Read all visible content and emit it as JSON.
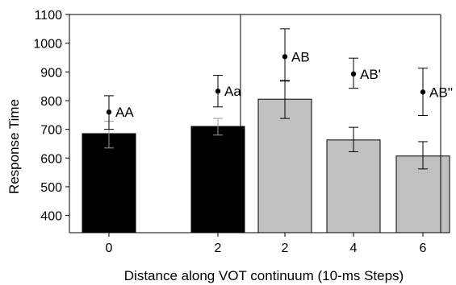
{
  "chart_data": {
    "type": "bar",
    "xlabel": "Distance along VOT continuum (10-ms Steps)",
    "ylabel": "Response Time",
    "ylim": [
      340,
      1100
    ],
    "yticks": [
      400,
      500,
      600,
      700,
      800,
      900,
      1000,
      1100
    ],
    "grid": false,
    "panel_divider_after_index": 1,
    "categories": [
      "0",
      "2",
      "2",
      "4",
      "6"
    ],
    "bars": {
      "values": [
        685,
        710,
        805,
        663,
        607
      ],
      "err_low": [
        635,
        680,
        738,
        622,
        562
      ],
      "err_high": [
        728,
        738,
        870,
        707,
        657
      ],
      "colors": [
        "#000000",
        "#000000",
        "#c0c0c0",
        "#c0c0c0",
        "#c0c0c0"
      ]
    },
    "points": {
      "values": [
        760,
        833,
        953,
        893,
        830
      ],
      "err_low": [
        700,
        778,
        868,
        843,
        748
      ],
      "err_high": [
        817,
        888,
        1050,
        948,
        913
      ],
      "labels": [
        "AA",
        "Aa",
        "AB",
        "AB'",
        "AB''"
      ]
    }
  }
}
